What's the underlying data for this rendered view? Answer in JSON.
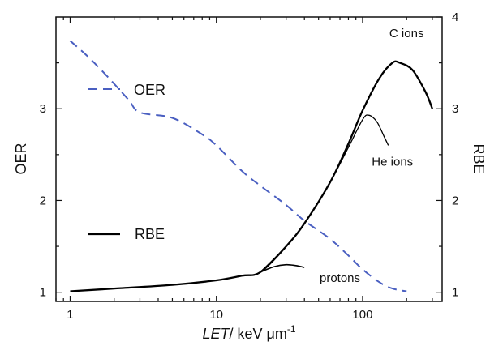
{
  "chart_data": {
    "type": "line",
    "xscale": "log",
    "xlim": [
      0.8,
      350
    ],
    "y_left": {
      "label": "OER",
      "lim": [
        0.9,
        4.0
      ],
      "ticks": [
        1,
        2,
        3
      ]
    },
    "y_right": {
      "label": "RBE",
      "lim": [
        0.9,
        4.0
      ],
      "ticks": [
        1,
        2,
        3,
        4
      ]
    },
    "x_ticks": [
      1,
      10,
      100
    ],
    "x_tick_labels": [
      "1",
      "10",
      "100"
    ],
    "xlabel_italic": "LET",
    "xlabel_rest": "/ keV μm",
    "xlabel_sup": "-1",
    "grid": false,
    "legend": {
      "position": "left",
      "entries": [
        {
          "label": "OER",
          "style": "dashed",
          "color": "#4a5fc1"
        },
        {
          "label": "RBE",
          "style": "solid",
          "color": "#000000"
        }
      ]
    },
    "series": [
      {
        "name": "OER",
        "axis": "left",
        "style": "dashed",
        "color": "#4a5fc1",
        "x": [
          1,
          1.3,
          1.8,
          2.5,
          3,
          5,
          8,
          10,
          15,
          20,
          30,
          40,
          60,
          80,
          100,
          130,
          160,
          200
        ],
        "y": [
          3.74,
          3.58,
          3.35,
          3.1,
          2.96,
          2.9,
          2.72,
          2.6,
          2.32,
          2.16,
          1.95,
          1.78,
          1.58,
          1.4,
          1.25,
          1.11,
          1.04,
          1.01
        ]
      },
      {
        "name": "C ions",
        "axis": "right",
        "style": "solid",
        "color": "#000000",
        "width": 2.3,
        "x": [
          1,
          2,
          5,
          10,
          15,
          20,
          30,
          40,
          60,
          80,
          100,
          130,
          160,
          180,
          220,
          270,
          300
        ],
        "y": [
          1.01,
          1.04,
          1.08,
          1.13,
          1.18,
          1.22,
          1.5,
          1.75,
          2.2,
          2.62,
          2.98,
          3.33,
          3.5,
          3.5,
          3.42,
          3.18,
          3.0
        ]
      },
      {
        "name": "He ions",
        "axis": "right",
        "style": "solid",
        "color": "#000000",
        "width": 1.3,
        "x": [
          20,
          30,
          40,
          60,
          80,
          100,
          110,
          125,
          140,
          150
        ],
        "y": [
          1.22,
          1.5,
          1.75,
          2.2,
          2.58,
          2.88,
          2.93,
          2.86,
          2.7,
          2.6
        ]
      },
      {
        "name": "protons",
        "axis": "right",
        "style": "solid",
        "color": "#000000",
        "width": 1.6,
        "x": [
          20,
          25,
          30,
          35,
          40
        ],
        "y": [
          1.22,
          1.28,
          1.3,
          1.29,
          1.27
        ]
      }
    ],
    "annotations": [
      {
        "text": "C ions",
        "x": 200,
        "y": 3.78,
        "axis": "right",
        "size": 15
      },
      {
        "text": "He ions",
        "x": 160,
        "y": 2.38,
        "axis": "right",
        "size": 15
      },
      {
        "text": "protons",
        "x": 70,
        "y": 1.11,
        "axis": "right",
        "size": 15
      },
      {
        "text": "OER",
        "x": 3.5,
        "y": 3.15,
        "axis": "left",
        "size": 18
      },
      {
        "text": "RBE",
        "x": 3.5,
        "y": 1.58,
        "axis": "left",
        "size": 18
      }
    ]
  }
}
